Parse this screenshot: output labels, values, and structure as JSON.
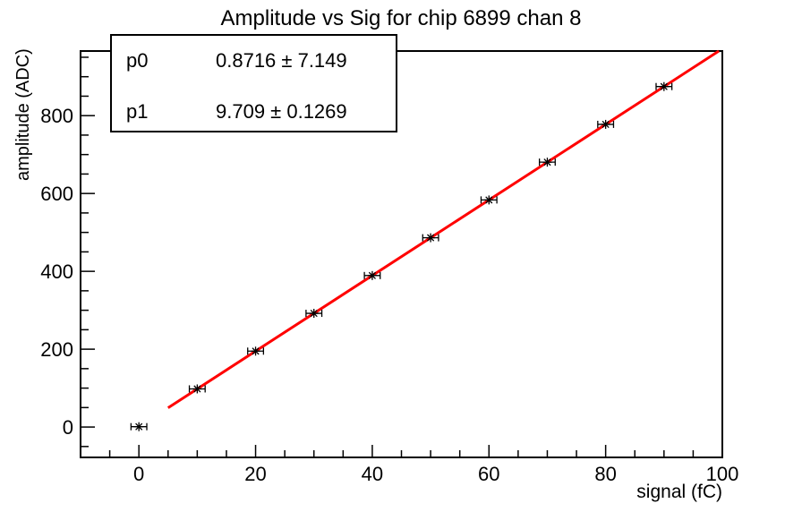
{
  "page": {
    "background": "#ffffff",
    "foreground": "#000000"
  },
  "title": "Amplitude vs Sig for chip 6899 chan 8",
  "stats_box": {
    "rows": [
      {
        "label": "p0",
        "value": "0.8716 ± 7.149"
      },
      {
        "label": "p1",
        "value": "9.709 ± 0.1269"
      }
    ]
  },
  "chart_data": {
    "type": "scatter",
    "title": "Amplitude vs Sig for chip 6899 chan 8",
    "xlabel": "signal (fC)",
    "ylabel": "amplitude (ADC)",
    "x": [
      0,
      10,
      20,
      30,
      40,
      50,
      60,
      70,
      80,
      90
    ],
    "y": [
      0.9,
      98.0,
      195.0,
      292.1,
      389.2,
      486.3,
      583.4,
      680.5,
      777.6,
      874.7
    ],
    "x_err": 1.2,
    "xlim": [
      -10,
      100
    ],
    "ylim": [
      -78,
      966
    ],
    "x_major_ticks": [
      0,
      20,
      40,
      60,
      80,
      100
    ],
    "y_major_ticks": [
      0,
      200,
      400,
      600,
      800
    ],
    "x_minor_step": 5,
    "y_minor_step": 50,
    "grid": false,
    "legend_position": "none",
    "marker_style": "asterisk",
    "marker_color": "#000000",
    "fit_line": {
      "p0": 0.8716,
      "p0_err": 7.149,
      "p1": 9.709,
      "p1_err": 0.1269,
      "x_start": 5,
      "x_end": 99.4,
      "color": "#ff0000"
    }
  }
}
